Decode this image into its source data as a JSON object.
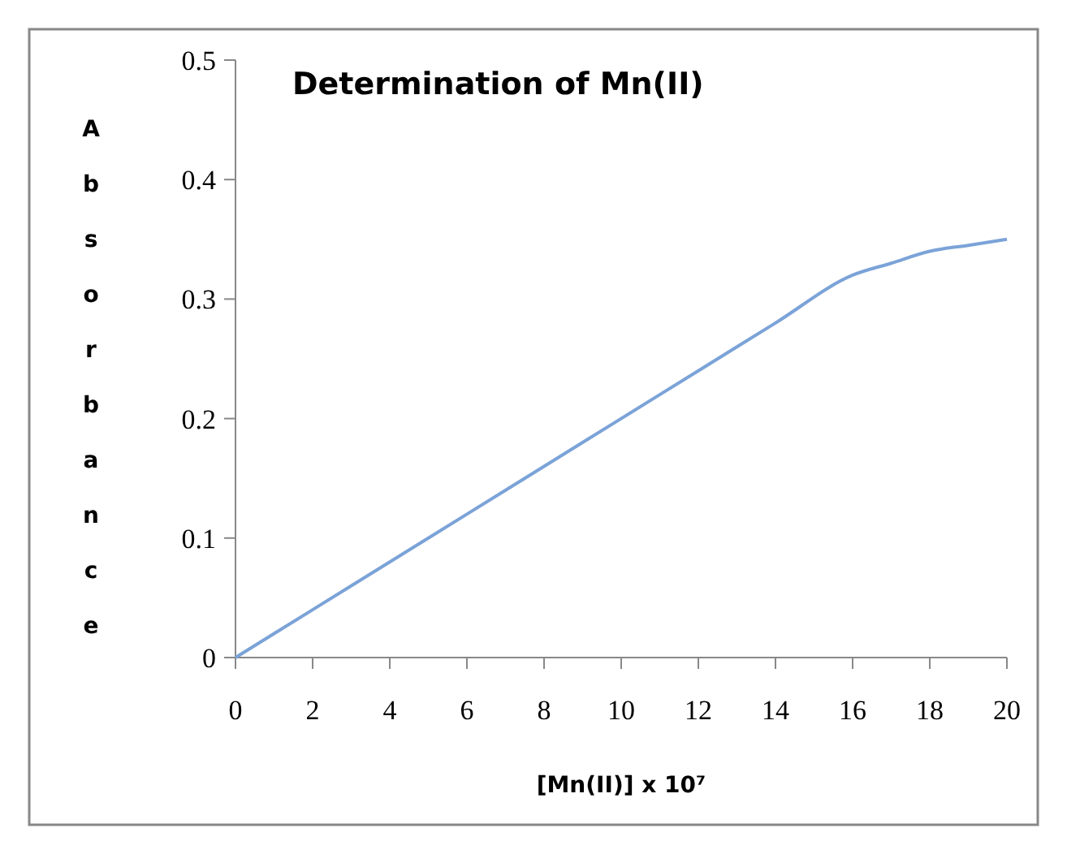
{
  "chart_data": {
    "type": "line",
    "title": "Determination of Mn(II)",
    "xlabel": "[Mn(II)] x 10⁷",
    "ylabel": "Absorbance",
    "x": [
      0,
      2,
      4,
      6,
      8,
      10,
      12,
      14,
      16,
      17,
      18,
      19,
      20
    ],
    "series": [
      {
        "color": "#7ba3d8",
        "values": [
          0,
          0.04,
          0.08,
          0.12,
          0.16,
          0.2,
          0.24,
          0.28,
          0.32,
          0.33,
          0.34,
          0.345,
          0.35
        ]
      }
    ],
    "xlim": [
      0,
      20
    ],
    "xticks": [
      0,
      2,
      4,
      6,
      8,
      10,
      12,
      14,
      16,
      18,
      20
    ],
    "ylim": [
      0,
      0.5
    ],
    "yticks": [
      0,
      0.1,
      0.2,
      0.3,
      0.4,
      0.5
    ],
    "grid": false,
    "marker": "none",
    "line_style": "solid"
  }
}
